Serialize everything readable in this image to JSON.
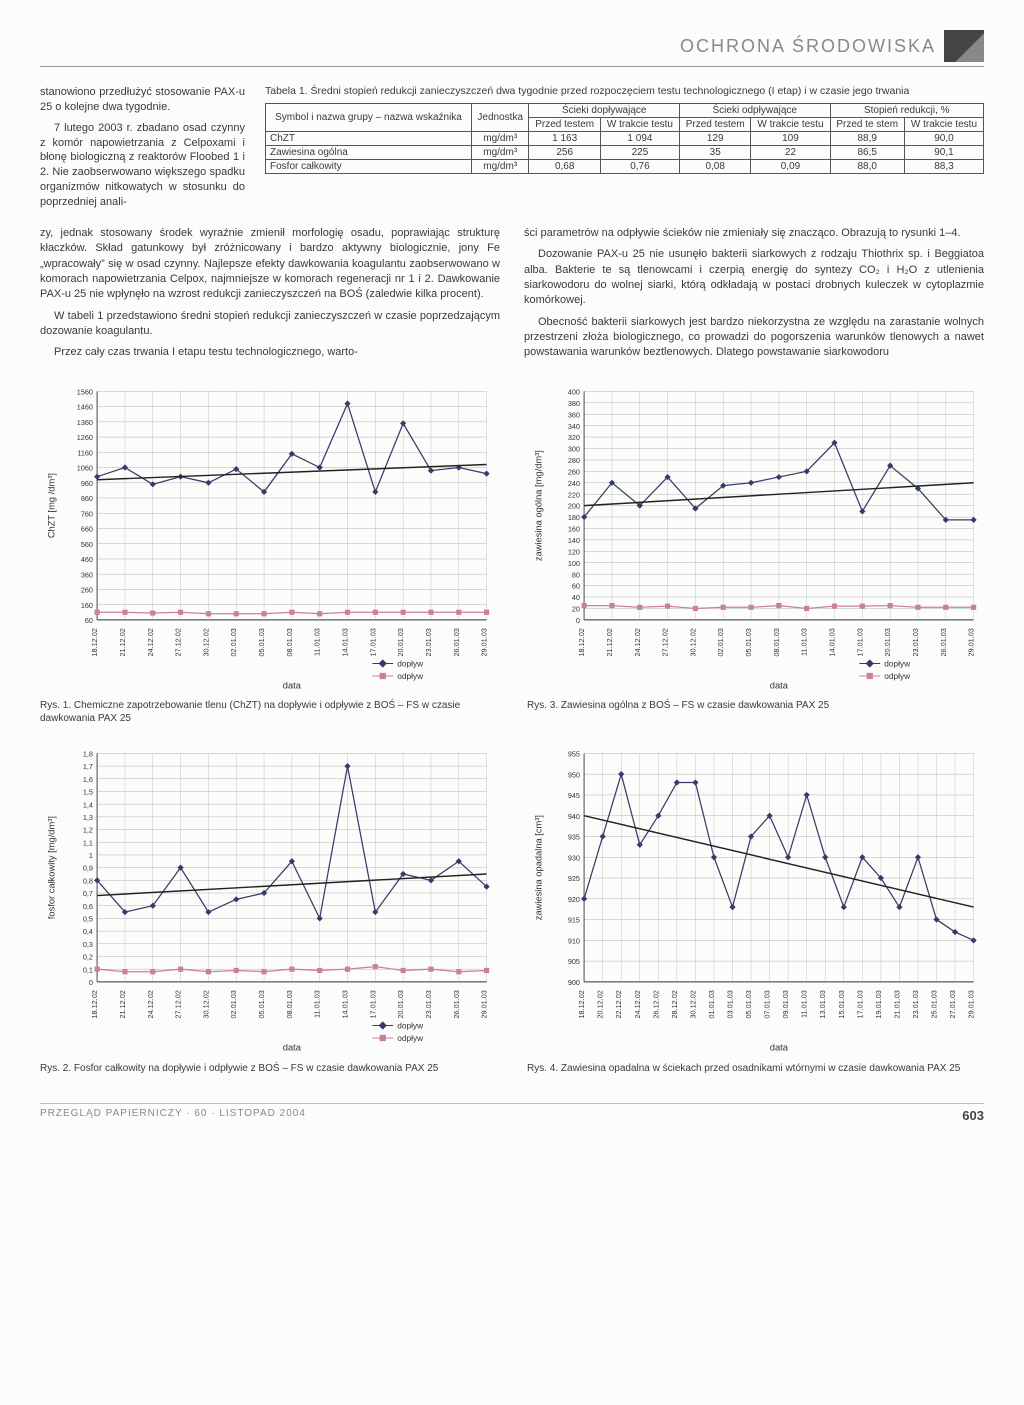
{
  "header": {
    "section": "OCHRONA ŚRODOWISKA"
  },
  "intro": {
    "p1": "stanowiono przedłużyć stosowanie PAX-u 25 o kolejne dwa tygodnie.",
    "p2": "7 lutego 2003 r. zbadano osad czynny z komór napowietrzania z Celpoxami i błonę biologiczną z reaktorów Floobed 1 i 2. Nie zaobserwowano większego spadku organizmów nitkowatych w stosunku do poprzedniej anali-"
  },
  "table1": {
    "caption": "Tabela 1. Średni stopień redukcji zanieczyszczeń dwa tygodnie przed rozpoczęciem testu technologicznego (I etap) i w czasie jego trwania",
    "h_symbol": "Symbol i nazwa grupy – nazwa wskaźnika",
    "h_unit": "Jednostka",
    "h_in": "Ścieki dopływające",
    "h_out": "Ścieki odpływające",
    "h_red": "Stopień redukcji, %",
    "sub_before": "Przed testem",
    "sub_during": "W trakcie testu",
    "sub_before2": "Przed te stem",
    "rows": [
      {
        "n": "ChZT",
        "u": "mg/dm³",
        "a": "1 163",
        "b": "1 094",
        "c": "129",
        "d": "109",
        "e": "88,9",
        "f": "90,0"
      },
      {
        "n": "Zawiesina ogólna",
        "u": "mg/dm³",
        "a": "256",
        "b": "225",
        "c": "35",
        "d": "22",
        "e": "86,5",
        "f": "90,1"
      },
      {
        "n": "Fosfor całkowity",
        "u": "mg/dm³",
        "a": "0,68",
        "b": "0,76",
        "c": "0,08",
        "d": "0,09",
        "e": "88,0",
        "f": "88,3"
      }
    ]
  },
  "body": {
    "left": {
      "p1": "zy, jednak stosowany środek wyraźnie zmienił morfologię osadu, poprawiając strukturę kłaczków. Skład gatunkowy był zróżnicowany i bardzo aktywny biologicznie, jony Fe „wpracowały” się w osad czynny. Najlepsze efekty dawkowania koagulantu zaobserwowano w komorach napowietrzania Celpox, najmniejsze w komorach regeneracji nr 1 i 2. Dawkowanie PAX-u 25 nie wpłynęło na wzrost redukcji zanieczyszczeń na BOŚ (zaledwie kilka procent).",
      "p2": "W tabeli 1 przedstawiono średni stopień redukcji zanieczyszczeń w czasie poprzedzającym dozowanie koagulantu.",
      "p3": "Przez cały czas trwania I etapu testu technologicznego, warto-"
    },
    "right": {
      "p1": "ści parametrów na odpływie ścieków nie zmieniały się znacząco. Obrazują to rysunki 1–4.",
      "p2": "Dozowanie PAX-u 25 nie usunęło bakterii siarkowych z rodzaju Thiothrix sp. i Beggiatoa alba. Bakterie te są tlenowcami i czerpią energię do syntezy CO₂ i H₂O z utlenienia siarkowodoru do wolnej siarki, którą odkładają w postaci drobnych kuleczek w cytoplazmie komórkowej.",
      "p3": "Obecność bakterii siarkowych jest bardzo niekorzystna ze względu na zarastanie wolnych przestrzeni złoża biologicznego, co prowadzi do pogorszenia warunków tlenowych a nawet powstawania warunków beztlenowych. Dlatego powstawanie siarkowodoru"
    }
  },
  "dates": [
    "18.12.02",
    "21.12.02",
    "24.12.02",
    "27.12.02",
    "30.12.02",
    "02.01.03",
    "05.01.03",
    "08.01.03",
    "11.01.03",
    "14.01.03",
    "17.01.03",
    "20.01.03",
    "23.01.03",
    "26.01.03",
    "29.01.03"
  ],
  "dates_dense": [
    "18.12.02",
    "20.12.02",
    "22.12.02",
    "24.12.02",
    "26.12.02",
    "28.12.02",
    "30.12.02",
    "01.01.03",
    "03.01.03",
    "05.01.03",
    "07.01.03",
    "09.01.03",
    "11.01.03",
    "13.01.03",
    "15.01.03",
    "17.01.03",
    "19.01.03",
    "21.01.03",
    "23.01.03",
    "25.01.03",
    "27.01.03",
    "29.01.03"
  ],
  "legend": {
    "in": "dopływ",
    "out": "odpływ",
    "x": "data"
  },
  "chart1": {
    "type": "line",
    "ylab": "ChZT [mg /dm³]",
    "ymin": 60,
    "ymax": 1560,
    "ystep": 100,
    "yticks": [
      60,
      160,
      260,
      360,
      460,
      560,
      660,
      760,
      860,
      960,
      1060,
      1160,
      1260,
      1360,
      1460,
      1560
    ],
    "series_in": [
      1000,
      1060,
      950,
      1000,
      960,
      1050,
      900,
      1150,
      1060,
      1480,
      900,
      1350,
      1040,
      1060,
      1020
    ],
    "series_out": [
      110,
      110,
      105,
      110,
      100,
      100,
      100,
      110,
      100,
      110,
      110,
      110,
      110,
      110,
      110
    ],
    "trend_in": [
      980,
      1080
    ],
    "colors": {
      "in": "#3a3a6a",
      "out": "#c97fa0",
      "grid": "#9aa",
      "text": "#333"
    },
    "caption": "Rys. 1. Chemiczne zapotrzebowanie tlenu (ChZT) na dopływie i odpływie z BOŚ – FS w czasie dawkowania PAX 25"
  },
  "chart2": {
    "type": "line",
    "ylab": "fosfor całkowity [mg/dm³]",
    "ymin": 0,
    "ymax": 1.8,
    "ystep": 0.1,
    "yticks": [
      0,
      0.1,
      0.2,
      0.3,
      0.4,
      0.5,
      0.6,
      0.7,
      0.8,
      0.9,
      1,
      1.1,
      1.2,
      1.3,
      1.4,
      1.5,
      1.6,
      1.7,
      1.8
    ],
    "series_in": [
      0.8,
      0.55,
      0.6,
      0.9,
      0.55,
      0.65,
      0.7,
      0.95,
      0.5,
      1.7,
      0.55,
      0.85,
      0.8,
      0.95,
      0.75
    ],
    "series_out": [
      0.1,
      0.08,
      0.08,
      0.1,
      0.08,
      0.09,
      0.08,
      0.1,
      0.09,
      0.1,
      0.12,
      0.09,
      0.1,
      0.08,
      0.09
    ],
    "trend_in": [
      0.68,
      0.85
    ],
    "colors": {
      "in": "#3a3a6a",
      "out": "#c97fa0",
      "grid": "#9aa",
      "text": "#333"
    },
    "caption": "Rys. 2. Fosfor całkowity na dopływie i odpływie z BOŚ – FS w czasie dawkowania PAX 25"
  },
  "chart3": {
    "type": "line",
    "ylab": "zawiesina ogólna [mg/dm³]",
    "ymin": 0,
    "ymax": 400,
    "ystep": 20,
    "yticks": [
      0,
      20,
      40,
      60,
      80,
      100,
      120,
      140,
      160,
      180,
      200,
      220,
      240,
      260,
      280,
      300,
      320,
      340,
      360,
      380,
      400
    ],
    "series_in": [
      180,
      240,
      200,
      250,
      195,
      235,
      240,
      250,
      260,
      310,
      190,
      270,
      230,
      175,
      175
    ],
    "series_out": [
      25,
      25,
      22,
      24,
      20,
      22,
      22,
      25,
      20,
      24,
      24,
      25,
      22,
      22,
      22
    ],
    "trend_in": [
      200,
      240
    ],
    "colors": {
      "in": "#3a3a6a",
      "out": "#c97fa0",
      "grid": "#9aa",
      "text": "#333"
    },
    "caption": "Rys. 3. Zawiesina ogólna z BOŚ – FS w czasie dawkowania PAX 25"
  },
  "chart4": {
    "type": "line",
    "ylab": "zawiesina opadalna [cm³]",
    "ymin": 900,
    "ymax": 955,
    "ystep": 5,
    "yticks": [
      900,
      905,
      910,
      915,
      920,
      925,
      930,
      935,
      940,
      945,
      950,
      955
    ],
    "series": [
      920,
      935,
      950,
      933,
      940,
      948,
      948,
      930,
      918,
      935,
      940,
      930,
      945,
      930,
      918,
      930,
      925,
      918,
      930,
      915,
      912,
      910
    ],
    "trend": [
      940,
      918
    ],
    "colors": {
      "line": "#3a3a6a",
      "grid": "#9aa",
      "text": "#333"
    },
    "caption": "Rys. 4. Zawiesina opadalna w ściekach przed osadnikami wtórnymi w czasie dawkowania PAX 25"
  },
  "footer": {
    "journal": "PRZEGLĄD PAPIERNICZY · 60 · LISTOPAD 2004",
    "page": "603"
  }
}
